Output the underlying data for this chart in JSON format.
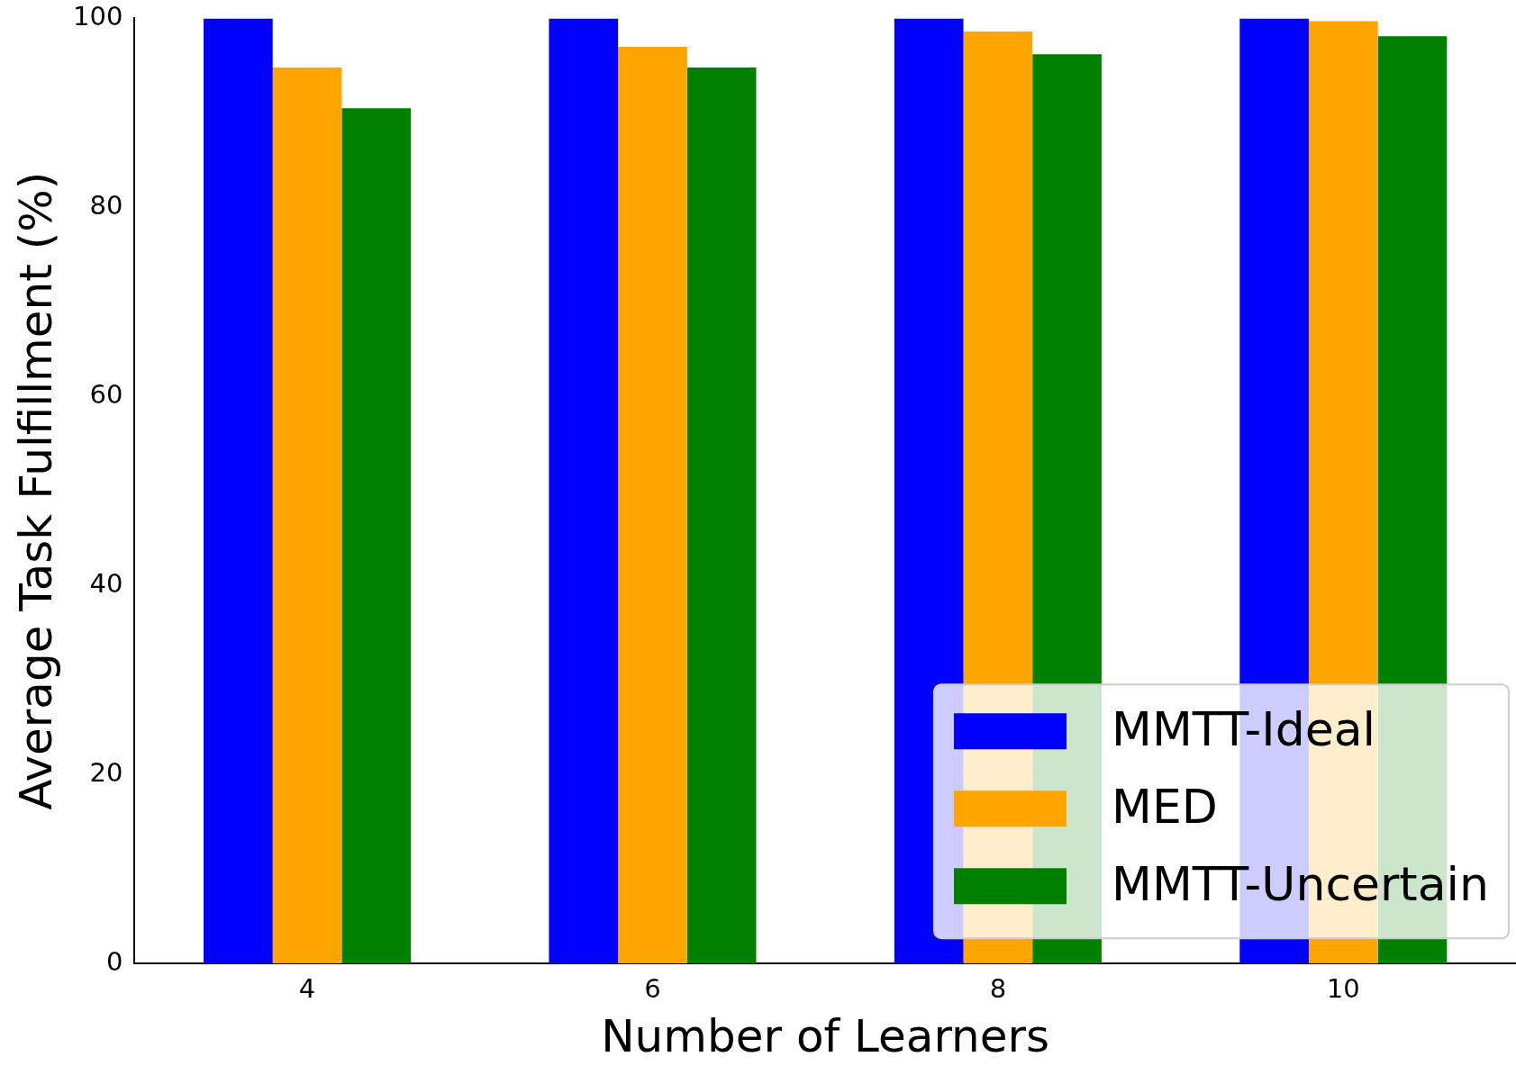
{
  "chart_data": {
    "type": "bar",
    "xlabel": "Number of Learners",
    "ylabel": "Average Task Fulfillment (%)",
    "categories": [
      "4",
      "6",
      "8",
      "10"
    ],
    "series": [
      {
        "name": "MMTT-Ideal",
        "color": "#0000ff",
        "values": [
          100,
          100,
          100,
          100
        ]
      },
      {
        "name": "MED",
        "color": "#ffa500",
        "values": [
          94.8,
          97.0,
          98.6,
          99.7
        ]
      },
      {
        "name": "MMTT-Uncertain",
        "color": "#008000",
        "values": [
          90.5,
          94.8,
          96.2,
          98.1
        ]
      }
    ],
    "ylim": [
      0,
      100
    ],
    "yticks": [
      0,
      20,
      40,
      60,
      80,
      100
    ],
    "grid": false,
    "legend": "bottom right"
  }
}
